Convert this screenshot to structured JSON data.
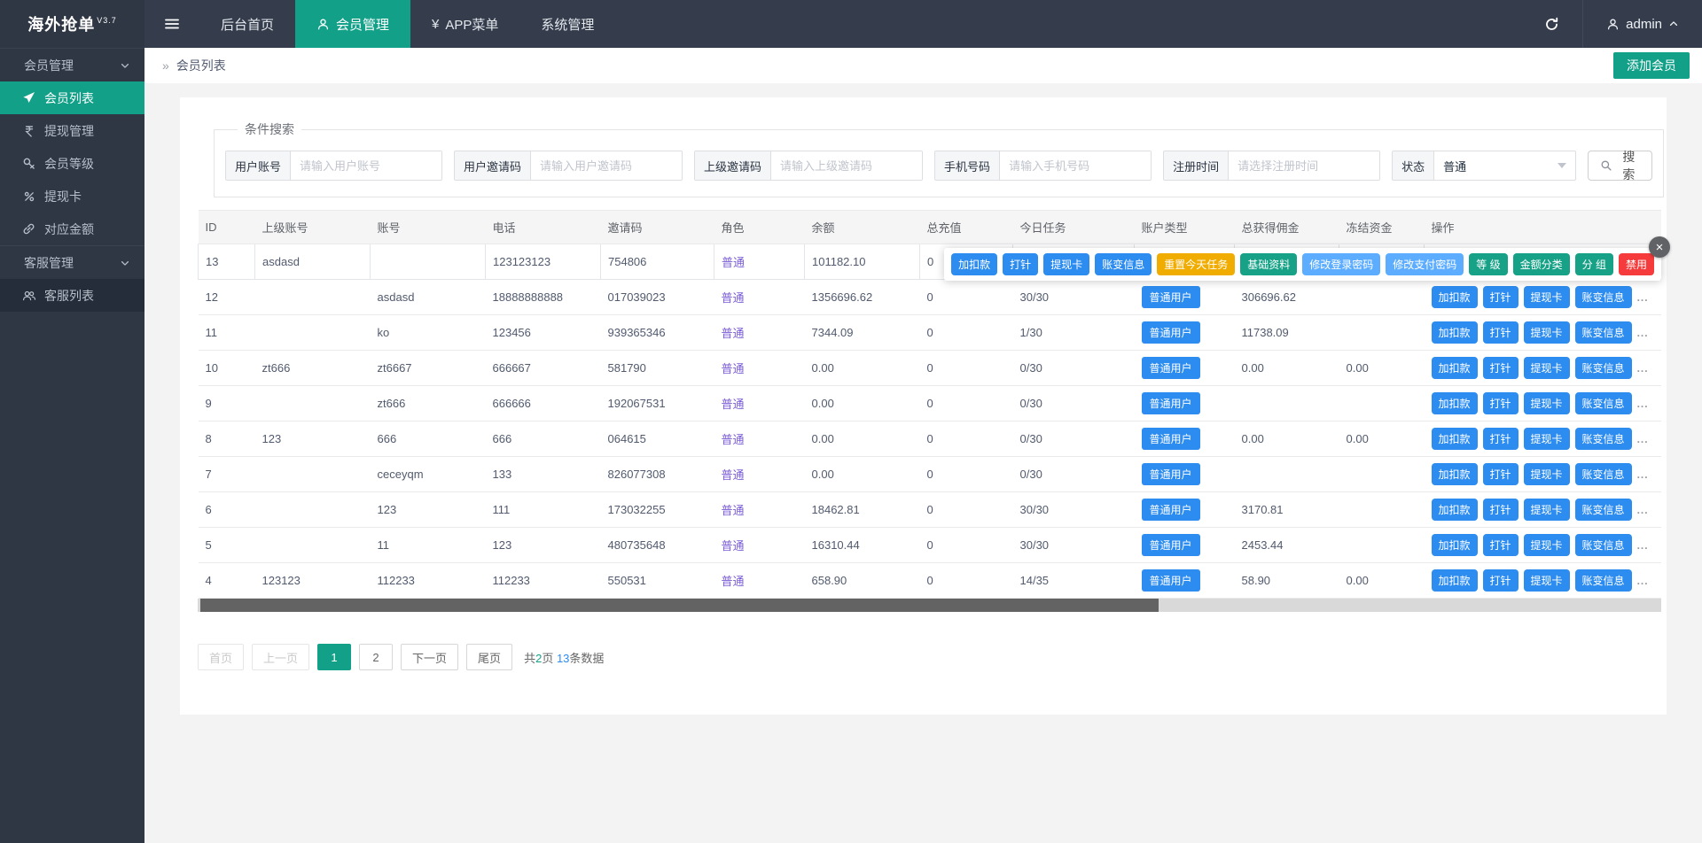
{
  "navbar": {
    "brand": "海外抢单",
    "version": "V3.7",
    "menu": [
      {
        "label": "后台首页",
        "active": false,
        "icon": ""
      },
      {
        "label": "会员管理",
        "active": true,
        "icon": "user"
      },
      {
        "label": "APP菜单",
        "active": false,
        "icon": "yen",
        "icon_char": "¥"
      },
      {
        "label": "系统管理",
        "active": false,
        "icon": ""
      }
    ],
    "username": "admin"
  },
  "sidebar": {
    "items": [
      {
        "label": "会员管理",
        "type": "group"
      },
      {
        "label": "会员列表",
        "type": "item",
        "icon": "rocket",
        "active": true
      },
      {
        "label": "提现管理",
        "type": "item",
        "icon": "rupee"
      },
      {
        "label": "会员等级",
        "type": "item",
        "icon": "key"
      },
      {
        "label": "提现卡",
        "type": "item",
        "icon": "percent"
      },
      {
        "label": "对应金额",
        "type": "item",
        "icon": "link"
      },
      {
        "label": "客服管理",
        "type": "group"
      },
      {
        "label": "客服列表",
        "type": "item",
        "icon": "users",
        "submenu": true
      }
    ]
  },
  "page": {
    "breadcrumb_icon": "»",
    "breadcrumb": "会员列表",
    "add_button": "添加会员"
  },
  "search": {
    "legend": "条件搜索",
    "fields": [
      {
        "label": "用户账号",
        "placeholder": "请输入用户账号"
      },
      {
        "label": "用户邀请码",
        "placeholder": "请输入用户邀请码"
      },
      {
        "label": "上级邀请码",
        "placeholder": "请输入上级邀请码"
      },
      {
        "label": "手机号码",
        "placeholder": "请输入手机号码"
      },
      {
        "label": "注册时间",
        "placeholder": "请选择注册时间"
      }
    ],
    "status": {
      "label": "状态",
      "value": "普通"
    },
    "button": "搜索"
  },
  "table": {
    "columns": [
      "ID",
      "上级账号",
      "账号",
      "电话",
      "邀请码",
      "角色",
      "余额",
      "总充值",
      "今日任务",
      "账户类型",
      "总获得佣金",
      "冻结资金",
      "操作"
    ],
    "rows": [
      {
        "id": "13",
        "parent_account": "asdasd",
        "account": "",
        "phone": "123123123",
        "invite_code": "754806",
        "role": "普通",
        "balance": "101182.10",
        "total_recharge": "0",
        "today_tasks": "",
        "account_type": "",
        "total_commission": "",
        "frozen": "",
        "selected": true
      },
      {
        "id": "12",
        "parent_account": "",
        "account": "asdasd",
        "phone": "18888888888",
        "invite_code": "017039023",
        "role": "普通",
        "balance": "1356696.62",
        "total_recharge": "0",
        "today_tasks": "30/30",
        "account_type": "普通用户",
        "total_commission": "306696.62",
        "frozen": ""
      },
      {
        "id": "11",
        "parent_account": "",
        "account": "ko",
        "phone": "123456",
        "invite_code": "939365346",
        "role": "普通",
        "balance": "7344.09",
        "total_recharge": "0",
        "today_tasks": "1/30",
        "account_type": "普通用户",
        "total_commission": "11738.09",
        "frozen": ""
      },
      {
        "id": "10",
        "parent_account": "zt666",
        "account": "zt6667",
        "phone": "666667",
        "invite_code": "581790",
        "role": "普通",
        "balance": "0.00",
        "total_recharge": "0",
        "today_tasks": "0/30",
        "account_type": "普通用户",
        "total_commission": "0.00",
        "frozen": "0.00"
      },
      {
        "id": "9",
        "parent_account": "",
        "account": "zt666",
        "phone": "666666",
        "invite_code": "192067531",
        "role": "普通",
        "balance": "0.00",
        "total_recharge": "0",
        "today_tasks": "0/30",
        "account_type": "普通用户",
        "total_commission": "",
        "frozen": ""
      },
      {
        "id": "8",
        "parent_account": "123",
        "account": "666",
        "phone": "666",
        "invite_code": "064615",
        "role": "普通",
        "balance": "0.00",
        "total_recharge": "0",
        "today_tasks": "0/30",
        "account_type": "普通用户",
        "total_commission": "0.00",
        "frozen": "0.00"
      },
      {
        "id": "7",
        "parent_account": "",
        "account": "ceceyqm",
        "phone": "133",
        "invite_code": "826077308",
        "role": "普通",
        "balance": "0.00",
        "total_recharge": "0",
        "today_tasks": "0/30",
        "account_type": "普通用户",
        "total_commission": "",
        "frozen": ""
      },
      {
        "id": "6",
        "parent_account": "",
        "account": "123",
        "phone": "111",
        "invite_code": "173032255",
        "role": "普通",
        "balance": "18462.81",
        "total_recharge": "0",
        "today_tasks": "30/30",
        "account_type": "普通用户",
        "total_commission": "3170.81",
        "frozen": ""
      },
      {
        "id": "5",
        "parent_account": "",
        "account": "11",
        "phone": "123",
        "invite_code": "480735648",
        "role": "普通",
        "balance": "16310.44",
        "total_recharge": "0",
        "today_tasks": "30/30",
        "account_type": "普通用户",
        "total_commission": "2453.44",
        "frozen": ""
      },
      {
        "id": "4",
        "parent_account": "123123",
        "account": "112233",
        "phone": "112233",
        "invite_code": "550531",
        "role": "普通",
        "balance": "658.90",
        "total_recharge": "0",
        "today_tasks": "14/35",
        "account_type": "普通用户",
        "total_commission": "58.90",
        "frozen": "0.00"
      }
    ],
    "row_actions": [
      "加扣款",
      "打针",
      "提现卡",
      "账变信息"
    ],
    "more": "...",
    "popup": {
      "buttons": [
        {
          "label": "加扣款",
          "style": "blue"
        },
        {
          "label": "打针",
          "style": "blue"
        },
        {
          "label": "提现卡",
          "style": "blue"
        },
        {
          "label": "账变信息",
          "style": "blue"
        },
        {
          "label": "重置今天任务",
          "style": "yellow"
        },
        {
          "label": "基础资料",
          "style": "green"
        },
        {
          "label": "修改登录密码",
          "style": "lightblue"
        },
        {
          "label": "修改支付密码",
          "style": "lightblue"
        },
        {
          "label": "等 级",
          "style": "green"
        },
        {
          "label": "金额分类",
          "style": "green"
        },
        {
          "label": "分 组",
          "style": "green"
        },
        {
          "label": "禁用",
          "style": "red"
        }
      ],
      "close": "×"
    }
  },
  "pagination": {
    "first": "首页",
    "prev": "上一页",
    "pages": [
      "1",
      "2"
    ],
    "active_page": "1",
    "next": "下一页",
    "last": "尾页",
    "summary": {
      "prefix": "共",
      "total_pages": "2",
      "pages_suffix": "页",
      "total_records": "13",
      "records_suffix": "条数据"
    }
  },
  "colors": {
    "accent_teal": "#12a089",
    "primary_blue": "#2d8cf0",
    "light_blue": "#5cadff",
    "green": "#17a287",
    "yellow": "#f0ad00",
    "red": "#f53b3b",
    "role_purple": "#7b5dd6",
    "navbar_bg": "#353d4d",
    "sidebar_bg": "#2f3644"
  }
}
